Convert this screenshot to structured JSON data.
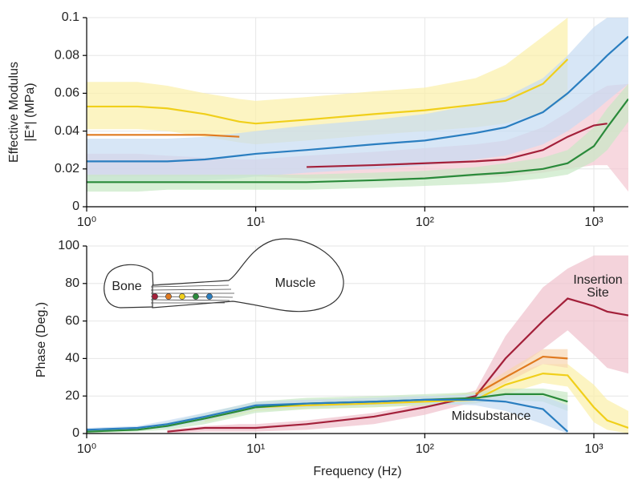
{
  "chart_data": [
    {
      "type": "line",
      "log_x": true,
      "grid": true,
      "ylabel": [
        "Effective Modulus",
        "|E*| (MPa)"
      ],
      "x": [
        1,
        2,
        3,
        5,
        8,
        10,
        20,
        50,
        100,
        200,
        300,
        500,
        700,
        1000,
        1200,
        1600
      ],
      "xlim": [
        1,
        1600
      ],
      "xticks": [
        {
          "value": 1,
          "label": "10⁰"
        },
        {
          "value": 10,
          "label": "10¹"
        },
        {
          "value": 100,
          "label": "10²"
        },
        {
          "value": 1000,
          "label": "10³"
        }
      ],
      "ylim": [
        0,
        0.1
      ],
      "yticks": [
        0,
        0.02,
        0.04,
        0.06,
        0.08,
        0.1
      ],
      "series": [
        {
          "color": "#f0cf1a",
          "band_color": "#fbf0a8",
          "values": [
            0.053,
            0.053,
            0.052,
            0.049,
            0.045,
            0.044,
            0.046,
            0.049,
            0.051,
            0.054,
            0.056,
            0.065,
            0.078,
            null,
            null,
            null
          ],
          "upper": [
            0.066,
            0.066,
            0.064,
            0.06,
            0.057,
            0.056,
            0.058,
            0.061,
            0.063,
            0.068,
            0.075,
            0.09,
            0.1,
            null,
            null,
            null
          ],
          "lower": [
            0.041,
            0.041,
            0.04,
            0.037,
            0.034,
            0.033,
            0.035,
            0.038,
            0.04,
            0.042,
            0.044,
            0.05,
            0.058,
            null,
            null,
            null
          ]
        },
        {
          "color": "#e07a1f",
          "values": [
            0.038,
            0.038,
            0.038,
            0.038,
            0.037,
            null,
            null,
            null,
            null,
            null,
            null,
            null,
            null,
            null,
            null,
            null
          ]
        },
        {
          "color": "#f0c0cc",
          "band_color": "#f4c8d2",
          "values": [
            null,
            null,
            null,
            null,
            null,
            null,
            null,
            null,
            null,
            null,
            null,
            null,
            null,
            null,
            null,
            null
          ],
          "upper": [
            0.028,
            0.028,
            0.027,
            0.026,
            0.025,
            0.025,
            0.027,
            0.029,
            0.031,
            0.033,
            0.035,
            0.042,
            0.05,
            0.06,
            0.064,
            0.065
          ],
          "lower": [
            0.016,
            0.016,
            0.016,
            0.016,
            0.016,
            0.016,
            0.015,
            0.015,
            0.015,
            0.016,
            0.016,
            0.018,
            0.02,
            0.022,
            0.022,
            0.008
          ]
        },
        {
          "color": "#2a7ec0",
          "band_color": "#c6dcf2",
          "values": [
            0.024,
            0.024,
            0.024,
            0.025,
            0.027,
            0.028,
            0.03,
            0.033,
            0.035,
            0.039,
            0.042,
            0.05,
            0.06,
            0.073,
            0.08,
            0.09
          ],
          "upper": [
            0.036,
            0.036,
            0.036,
            0.037,
            0.039,
            0.04,
            0.043,
            0.046,
            0.049,
            0.054,
            0.058,
            0.068,
            0.08,
            0.095,
            0.1,
            0.1
          ],
          "lower": [
            0.013,
            0.013,
            0.013,
            0.014,
            0.015,
            0.016,
            0.018,
            0.02,
            0.022,
            0.025,
            0.027,
            0.033,
            0.04,
            0.05,
            0.056,
            0.065
          ]
        },
        {
          "color": "#a3203a",
          "values": [
            null,
            null,
            null,
            null,
            null,
            null,
            0.021,
            0.022,
            0.023,
            0.024,
            0.025,
            0.03,
            0.037,
            0.043,
            0.044,
            null
          ]
        },
        {
          "color": "#2a8a3a",
          "band_color": "#c8e8c4",
          "values": [
            0.013,
            0.013,
            0.013,
            0.013,
            0.013,
            0.013,
            0.013,
            0.014,
            0.015,
            0.017,
            0.018,
            0.02,
            0.023,
            0.032,
            0.042,
            0.057
          ],
          "upper": [
            0.017,
            0.017,
            0.017,
            0.017,
            0.017,
            0.017,
            0.017,
            0.018,
            0.019,
            0.021,
            0.023,
            0.026,
            0.03,
            0.042,
            0.052,
            0.065
          ],
          "lower": [
            0.008,
            0.008,
            0.009,
            0.009,
            0.009,
            0.009,
            0.009,
            0.01,
            0.011,
            0.012,
            0.013,
            0.015,
            0.017,
            0.024,
            0.03,
            0.045
          ]
        }
      ]
    },
    {
      "type": "line",
      "log_x": true,
      "grid": true,
      "ylabel": [
        "Phase (Deg.)"
      ],
      "xlabel": "Frequency (Hz)",
      "annotations": [
        "Insertion",
        "Site",
        "Midsubstance"
      ],
      "inset_labels": [
        "Bone",
        "Muscle"
      ],
      "inset_dots": [
        "#a3203a",
        "#e07a1f",
        "#f0cf1a",
        "#2a8a3a",
        "#2a7ec0"
      ],
      "x": [
        1,
        2,
        3,
        5,
        8,
        10,
        20,
        50,
        100,
        200,
        300,
        500,
        700,
        1000,
        1200,
        1600
      ],
      "xlim": [
        1,
        1600
      ],
      "xticks": [
        {
          "value": 1,
          "label": "10⁰"
        },
        {
          "value": 10,
          "label": "10¹"
        },
        {
          "value": 100,
          "label": "10²"
        },
        {
          "value": 1000,
          "label": "10³"
        }
      ],
      "ylim": [
        0,
        100
      ],
      "yticks": [
        0,
        20,
        40,
        60,
        80,
        100
      ],
      "series": [
        {
          "color": "#a3203a",
          "band_color": "#f0c0cc",
          "values": [
            null,
            null,
            1,
            3,
            3,
            3,
            5,
            9,
            14,
            20,
            40,
            60,
            72,
            68,
            65,
            63
          ],
          "upper": [
            null,
            null,
            2,
            4,
            5,
            5,
            7,
            11,
            16,
            23,
            52,
            78,
            88,
            95,
            95,
            95
          ],
          "lower": [
            null,
            null,
            0,
            1,
            1,
            1,
            2,
            5,
            10,
            17,
            30,
            45,
            55,
            42,
            35,
            32
          ]
        },
        {
          "color": "#f0cf1a",
          "band_color": "#fbf0a8",
          "values": [
            null,
            null,
            null,
            8,
            12,
            14,
            15,
            16,
            17,
            18,
            26,
            32,
            31,
            14,
            7,
            3
          ],
          "upper": [
            null,
            null,
            null,
            10,
            15,
            17,
            18,
            19,
            20,
            22,
            31,
            37,
            37,
            26,
            18,
            12
          ],
          "lower": [
            null,
            null,
            null,
            6,
            10,
            12,
            13,
            14,
            15,
            16,
            21,
            27,
            25,
            6,
            2,
            0
          ]
        },
        {
          "color": "#e07a1f",
          "band_color": "#f8d6b0",
          "values": [
            null,
            null,
            null,
            null,
            null,
            null,
            null,
            null,
            null,
            21,
            30,
            41,
            40,
            null,
            null,
            null
          ],
          "upper": [
            null,
            null,
            null,
            null,
            null,
            null,
            null,
            null,
            null,
            23,
            33,
            45,
            45,
            null,
            null,
            null
          ],
          "lower": [
            null,
            null,
            null,
            null,
            null,
            null,
            null,
            null,
            null,
            19,
            27,
            37,
            35,
            null,
            null,
            null
          ]
        },
        {
          "color": "#2a8a3a",
          "band_color": "#c8e8c4",
          "values": [
            1,
            2,
            4,
            8,
            12,
            14,
            16,
            17,
            18,
            19,
            21,
            21,
            17,
            null,
            null,
            null
          ],
          "upper": [
            2,
            3,
            6,
            11,
            15,
            17,
            19,
            20,
            21,
            22,
            24,
            24,
            22,
            null,
            null,
            null
          ],
          "lower": [
            0,
            1,
            2,
            5,
            9,
            11,
            13,
            14,
            15,
            16,
            18,
            17,
            12,
            null,
            null,
            null
          ]
        },
        {
          "color": "#2a7ec0",
          "band_color": "#c6dcf2",
          "values": [
            2,
            3,
            5,
            9,
            13,
            15,
            16,
            17,
            18,
            18,
            17,
            13,
            1,
            null,
            null,
            null
          ],
          "upper": [
            3,
            4,
            7,
            11,
            15,
            17,
            18,
            19,
            20,
            21,
            21,
            20,
            15,
            null,
            null,
            null
          ],
          "lower": [
            1,
            2,
            3,
            7,
            11,
            13,
            14,
            15,
            16,
            15,
            12,
            5,
            0,
            null,
            null,
            null
          ]
        }
      ]
    }
  ]
}
